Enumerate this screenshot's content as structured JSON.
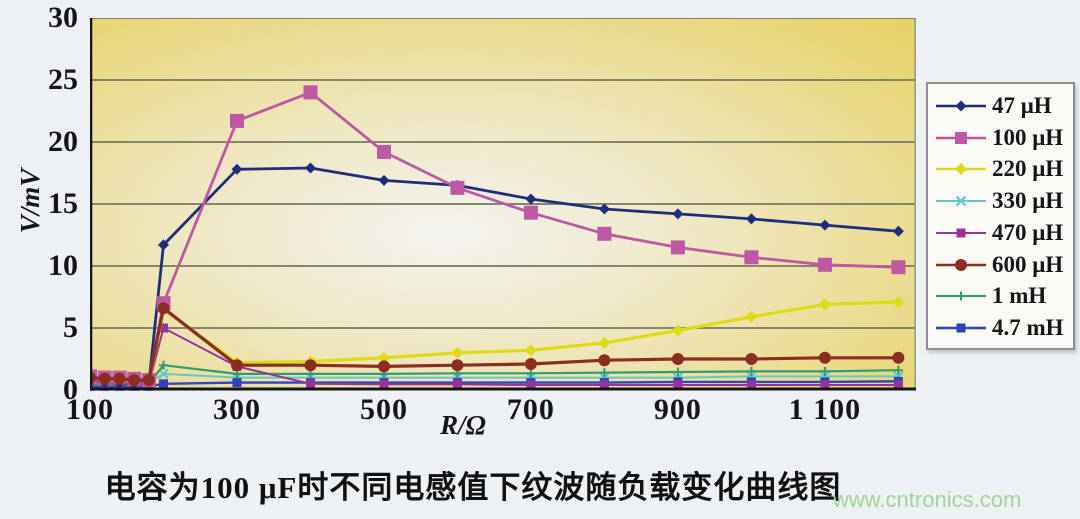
{
  "page": {
    "background": "#eef1f4",
    "watermark": "www.cntronics.com",
    "watermark_color": "#9cd69a"
  },
  "chart_data": {
    "type": "line",
    "title": "电容为100 μF时不同电感值下纹波随负载变化曲线图",
    "xlabel": "R/Ω",
    "ylabel": "V/mV",
    "xlim": [
      100,
      1224
    ],
    "ylim": [
      0,
      30
    ],
    "grid": "horizontal",
    "grid_color": "#75785f",
    "axis_color": "#161616",
    "legend_position": "right",
    "plot_bg": {
      "center": "#f4f3f1",
      "mid": "#efe7c2",
      "edge": "#e6d160"
    },
    "x_ticks": [
      {
        "value": 100,
        "label": "100"
      },
      {
        "value": 300,
        "label": "300"
      },
      {
        "value": 500,
        "label": "500"
      },
      {
        "value": 700,
        "label": "700"
      },
      {
        "value": 900,
        "label": "900"
      },
      {
        "value": 1100,
        "label": "1 100"
      }
    ],
    "y_ticks": [
      {
        "value": 0,
        "label": "0"
      },
      {
        "value": 5,
        "label": "5"
      },
      {
        "value": 10,
        "label": "10"
      },
      {
        "value": 15,
        "label": "15"
      },
      {
        "value": 20,
        "label": "20"
      },
      {
        "value": 25,
        "label": "25"
      },
      {
        "value": 30,
        "label": "30"
      }
    ],
    "x": [
      100,
      120,
      140,
      160,
      180,
      200,
      300,
      400,
      500,
      600,
      700,
      800,
      900,
      1000,
      1100,
      1200
    ],
    "series": [
      {
        "name": "47 μH",
        "color": "#1f2d7d",
        "marker": "diamond",
        "lw": 2.8,
        "ms": 5.5,
        "values": [
          0.7,
          0.6,
          0.5,
          0.5,
          0.5,
          11.7,
          17.8,
          17.9,
          16.9,
          16.5,
          15.4,
          14.6,
          14.2,
          13.8,
          13.3,
          12.8
        ]
      },
      {
        "name": "100 μH",
        "color": "#bf58a4",
        "marker": "square",
        "lw": 2.8,
        "ms": 7,
        "values": [
          1.1,
          1.0,
          1.0,
          0.9,
          0.8,
          7.0,
          21.7,
          24.0,
          19.2,
          16.3,
          14.3,
          12.6,
          11.5,
          10.7,
          10.1,
          9.9
        ]
      },
      {
        "name": "220 μH",
        "color": "#dedb15",
        "marker": "diamond",
        "lw": 3.2,
        "ms": 6,
        "values": [
          0.9,
          0.8,
          0.8,
          0.7,
          0.7,
          6.5,
          2.2,
          2.3,
          2.6,
          3.0,
          3.2,
          3.8,
          4.8,
          5.9,
          6.9,
          7.1
        ]
      },
      {
        "name": "330 μH",
        "color": "#63c6cb",
        "marker": "x",
        "lw": 2,
        "ms": 4.5,
        "values": [
          0.7,
          0.7,
          0.6,
          0.6,
          0.6,
          1.3,
          1.0,
          1.0,
          1.0,
          1.0,
          1.0,
          1.0,
          1.0,
          1.1,
          1.1,
          1.1
        ]
      },
      {
        "name": "470 μH",
        "color": "#98339b",
        "marker": "square",
        "lw": 2,
        "ms": 4.5,
        "values": [
          0.6,
          0.6,
          0.5,
          0.5,
          0.5,
          5.0,
          1.9,
          0.5,
          0.45,
          0.45,
          0.4,
          0.4,
          0.4,
          0.4,
          0.4,
          0.4
        ]
      },
      {
        "name": "600 μH",
        "color": "#8c2e1f",
        "marker": "circle",
        "lw": 3.2,
        "ms": 6,
        "values": [
          1.0,
          0.9,
          0.9,
          0.8,
          0.8,
          6.6,
          2.0,
          2.0,
          1.9,
          2.0,
          2.1,
          2.4,
          2.5,
          2.5,
          2.6,
          2.6
        ]
      },
      {
        "name": "1 mH",
        "color": "#2f9c74",
        "marker": "plus",
        "lw": 2.2,
        "ms": 4.5,
        "values": [
          0.4,
          0.4,
          0.4,
          0.4,
          0.5,
          2.0,
          1.3,
          1.3,
          1.3,
          1.35,
          1.35,
          1.4,
          1.45,
          1.5,
          1.5,
          1.6
        ]
      },
      {
        "name": "4.7 mH",
        "color": "#3144c0",
        "marker": "square",
        "lw": 2.4,
        "ms": 4.5,
        "values": [
          0.3,
          0.3,
          0.3,
          0.3,
          0.3,
          0.5,
          0.6,
          0.6,
          0.6,
          0.6,
          0.6,
          0.6,
          0.65,
          0.65,
          0.65,
          0.7
        ]
      }
    ]
  }
}
